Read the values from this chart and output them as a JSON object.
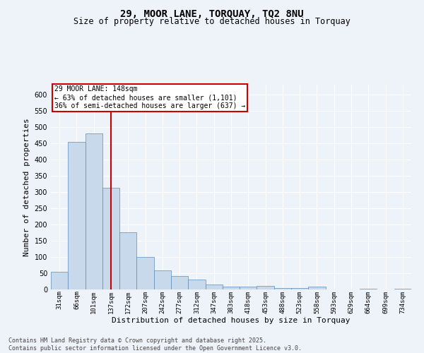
{
  "title1": "29, MOOR LANE, TORQUAY, TQ2 8NU",
  "title2": "Size of property relative to detached houses in Torquay",
  "xlabel": "Distribution of detached houses by size in Torquay",
  "ylabel": "Number of detached properties",
  "categories": [
    "31sqm",
    "66sqm",
    "101sqm",
    "137sqm",
    "172sqm",
    "207sqm",
    "242sqm",
    "277sqm",
    "312sqm",
    "347sqm",
    "383sqm",
    "418sqm",
    "453sqm",
    "488sqm",
    "523sqm",
    "558sqm",
    "593sqm",
    "629sqm",
    "664sqm",
    "699sqm",
    "734sqm"
  ],
  "values": [
    55,
    455,
    480,
    312,
    175,
    100,
    58,
    42,
    30,
    15,
    8,
    8,
    10,
    5,
    5,
    8,
    0,
    0,
    2,
    0,
    2
  ],
  "bar_color": "#c9d9ec",
  "bar_edge_color": "#5b8db8",
  "redline_x": 3,
  "annotation_title": "29 MOOR LANE: 148sqm",
  "annotation_line1": "← 63% of detached houses are smaller (1,101)",
  "annotation_line2": "36% of semi-detached houses are larger (637) →",
  "annotation_box_color": "#ffffff",
  "annotation_border_color": "#cc0000",
  "redline_color": "#cc0000",
  "background_color": "#eef2f9",
  "grid_color": "#ffffff",
  "footer_line1": "Contains HM Land Registry data © Crown copyright and database right 2025.",
  "footer_line2": "Contains public sector information licensed under the Open Government Licence v3.0.",
  "ylim": [
    0,
    630
  ],
  "yticks": [
    0,
    50,
    100,
    150,
    200,
    250,
    300,
    350,
    400,
    450,
    500,
    550,
    600
  ]
}
